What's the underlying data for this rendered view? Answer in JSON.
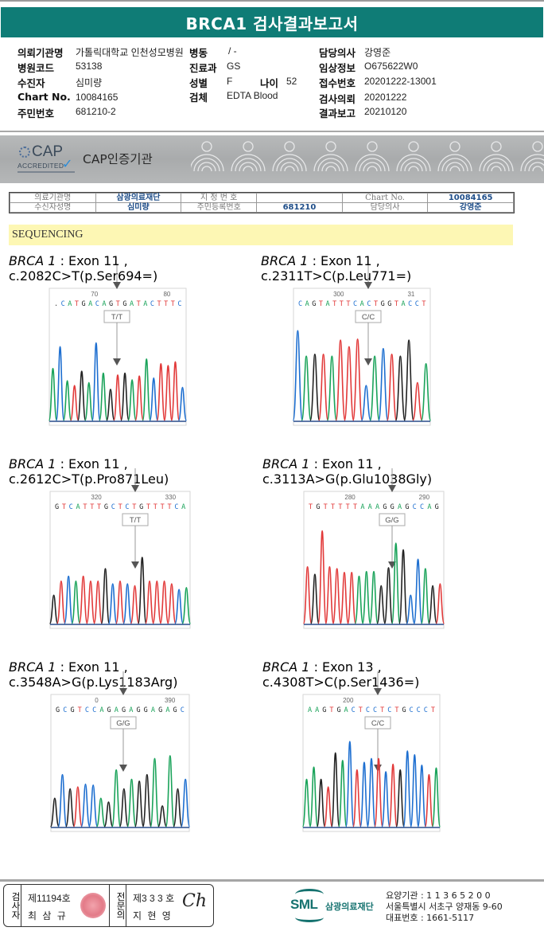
{
  "report": {
    "title": "BRCA1 검사결과보고서",
    "fields": {
      "institution_label": "의뢰기관명",
      "institution_value": "가톨릭대학교 인천성모병원",
      "ward_label": "병동",
      "ward_value": "/ -",
      "doctor_label": "담당의사",
      "doctor_value": "강영준",
      "hospital_code_label": "병원코드",
      "hospital_code_value": "53138",
      "dept_label": "진료과",
      "dept_value": "GS",
      "clinical_label": "임상정보",
      "clinical_value": "O675622W0",
      "patient_label": "수진자",
      "patient_value": "심미량",
      "sex_label": "성별",
      "sex_value": "F",
      "age_label": "나이",
      "age_value": "52",
      "receipt_label": "접수번호",
      "receipt_value": "20201222-13001",
      "chart_label": "Chart No.",
      "chart_value": "10084165",
      "specimen_label": "검체",
      "specimen_value": "EDTA Blood",
      "request_label": "검사의뢰",
      "request_value": "20201222",
      "rrn_label": "주민번호",
      "rrn_value": "681210-2",
      "result_label": "결과보고",
      "result_value": "20210120"
    }
  },
  "cap": {
    "logo_text": "CAP",
    "accredited": "ACCREDITED",
    "title": "CAP인증기관"
  },
  "mini_table": {
    "r1": [
      "의료기관명",
      "삼광의료재단",
      "지 정 번 호",
      "",
      "Chart No.",
      "10084165"
    ],
    "r2": [
      "수신자성명",
      "심미량",
      "주민등록번호",
      "681210",
      "담당의사",
      "강영준"
    ]
  },
  "section_title": "SEQUENCING",
  "colors": {
    "A": "#1aa35a",
    "C": "#1e6fd0",
    "G": "#222222",
    "T": "#e23a3a",
    "header": "#0f7c76"
  },
  "panels": [
    {
      "gene": "BRCA 1",
      "desc": " : Exon 11 , c.2082C>T(p.Ser694=)",
      "genotype": "T/T",
      "ticks": [
        "70",
        "80"
      ],
      "bases": ".CATGACAGTGATACTTTC"
    },
    {
      "gene": "BRCA 1",
      "desc": " : Exon 11 , c.2311T>C(p.Leu771=)",
      "genotype": "C/C",
      "ticks": [
        "300",
        "31"
      ],
      "bases": "CAGTATTTCACTGGTACCT"
    },
    {
      "gene": "BRCA 1",
      "desc": " : Exon 11 , c.2612C>T(p.Pro871Leu)",
      "genotype": "T/T",
      "ticks": [
        "320",
        "330"
      ],
      "bases": "GTCATTTGCTCTGTTTTCA"
    },
    {
      "gene": "BRCA 1",
      "desc": " : Exon 11 , c.3113A>G(p.Glu1038Gly)",
      "genotype": "G/G",
      "ticks": [
        "280",
        "290"
      ],
      "bases": "TGTTTTTAAAGGAGCCAG"
    },
    {
      "gene": "BRCA 1",
      "desc": " : Exon 11 , c.3548A>G(p.Lys1183Arg)",
      "genotype": "G/G",
      "ticks": [
        "0",
        "390"
      ],
      "bases": "GCGTCCAGAGAGGAGAGC"
    },
    {
      "gene": "BRCA 1",
      "desc": " : Exon 13 , c.4308T>C(p.Ser1436=)",
      "genotype": "C/C",
      "ticks": [
        "200",
        ""
      ],
      "bases": "AAGTGACTCCTCTGCCCT"
    }
  ],
  "signature": {
    "examiner_label": "검사자",
    "examiner_no": "제11194호",
    "examiner_name": "최 삼 규",
    "specialist_label": "전문의",
    "specialist_no": "제3 3 3 호",
    "specialist_name": "지 현 영",
    "sign": "Ch"
  },
  "footer": {
    "logo": "SML",
    "org_name": "삼광의료재단",
    "line1": "요양기관 : 1 1 3 6 5 2 0 0",
    "line2": "서울특별시 서초구 양재동 9-60",
    "line3": "대표번호 : 1661-5117"
  }
}
